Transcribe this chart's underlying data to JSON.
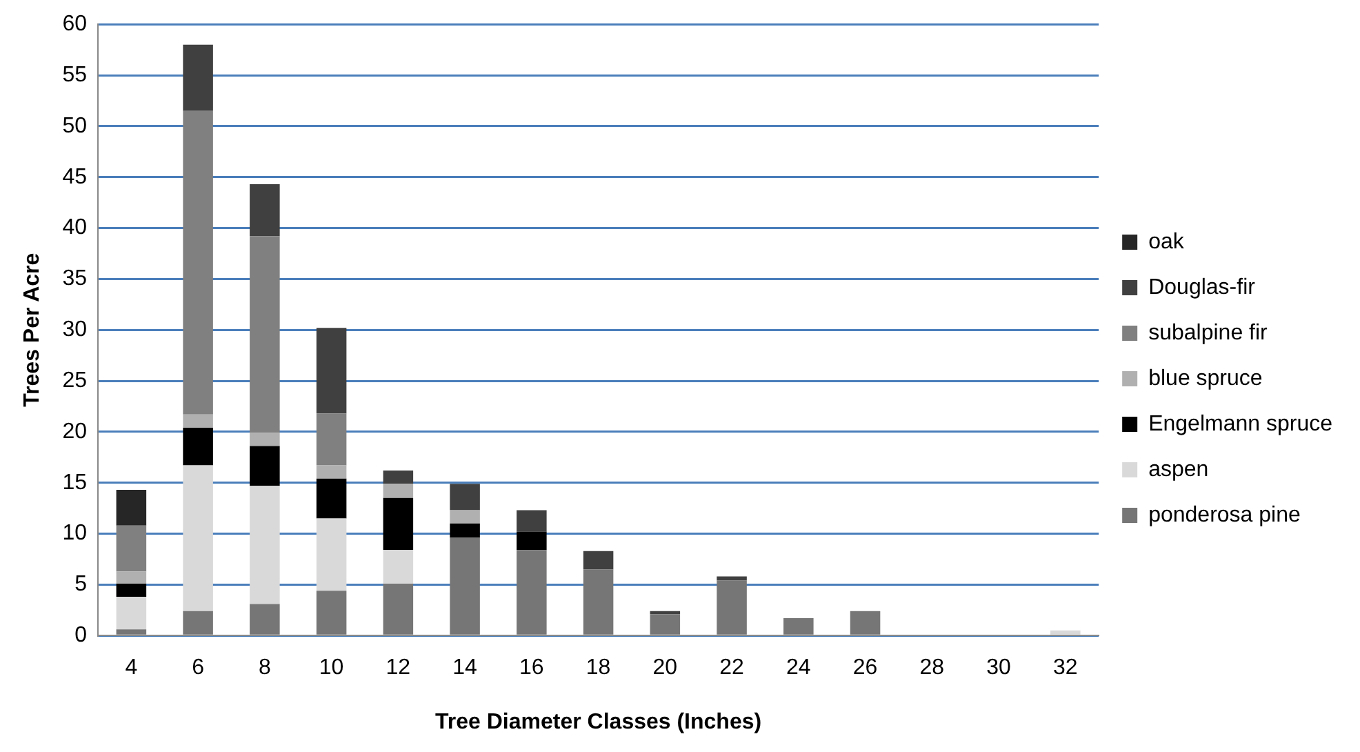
{
  "chart_data": {
    "type": "bar",
    "stacked": true,
    "xlabel": "Tree Diameter Classes (Inches)",
    "ylabel": "Trees Per Acre",
    "categories": [
      "4",
      "6",
      "8",
      "10",
      "12",
      "14",
      "16",
      "18",
      "20",
      "22",
      "24",
      "26",
      "28",
      "30",
      "32"
    ],
    "series": [
      {
        "name": "ponderosa pine",
        "color": "#767676",
        "values": [
          0.6,
          2.4,
          3.1,
          4.4,
          5.1,
          9.6,
          8.4,
          6.5,
          2.1,
          5.4,
          1.7,
          2.4,
          0,
          0,
          0
        ]
      },
      {
        "name": "aspen",
        "color": "#d9d9d9",
        "values": [
          3.2,
          14.3,
          11.6,
          7.1,
          3.3,
          0,
          0,
          0,
          0,
          0,
          0,
          0,
          0,
          0,
          0.5
        ]
      },
      {
        "name": "Engelmann spruce",
        "color": "#000000",
        "values": [
          1.3,
          3.7,
          3.9,
          3.9,
          5.1,
          1.4,
          1.8,
          0,
          0,
          0,
          0,
          0,
          0,
          0,
          0
        ]
      },
      {
        "name": "blue spruce",
        "color": "#b0b0b0",
        "values": [
          1.2,
          1.3,
          1.3,
          1.3,
          1.4,
          1.3,
          0,
          0,
          0,
          0,
          0,
          0,
          0,
          0,
          0
        ]
      },
      {
        "name": "subalpine fir",
        "color": "#808080",
        "values": [
          4.5,
          29.8,
          19.3,
          5.1,
          0,
          0,
          0,
          0,
          0,
          0,
          0,
          0,
          0,
          0,
          0
        ]
      },
      {
        "name": "Douglas-fir",
        "color": "#404040",
        "values": [
          0,
          6.5,
          5.1,
          8.4,
          1.3,
          2.6,
          2.1,
          1.8,
          0.3,
          0.4,
          0,
          0,
          0,
          0,
          0
        ]
      },
      {
        "name": "oak",
        "color": "#262626",
        "values": [
          3.5,
          0,
          0,
          0,
          0,
          0,
          0,
          0,
          0,
          0,
          0,
          0,
          0,
          0,
          0
        ]
      }
    ],
    "ylim": [
      0,
      60
    ],
    "yticks": [
      0,
      5,
      10,
      15,
      20,
      25,
      30,
      35,
      40,
      45,
      50,
      55,
      60
    ],
    "grid": "y",
    "legend": "right"
  }
}
